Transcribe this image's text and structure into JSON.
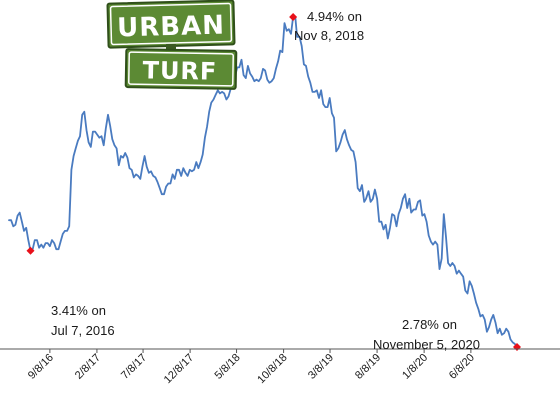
{
  "logo": {
    "line1": "URBAN",
    "line2": "TURF",
    "sign_color": "#5c8a34",
    "sign_border": "#2f4f1a"
  },
  "colors": {
    "line": "#4a7bc0",
    "marker": "#e8101a",
    "axis": "#555555"
  },
  "annotations": {
    "high_line1": "4.94% on",
    "high_line2": "Nov 8, 2018",
    "low2016_line1": "3.41% on",
    "low2016_line2": "Jul 7, 2016",
    "low2020_line1": "2.78% on",
    "low2020_line2": "November 5, 2020"
  },
  "chart_data": {
    "type": "line",
    "title": "",
    "xlabel": "",
    "ylabel": "",
    "x_ticks": [
      "9/8/16",
      "2/8/17",
      "7/8/17",
      "12/8/17",
      "5/8/18",
      "10/8/18",
      "3/8/19",
      "8/8/19",
      "1/8/20",
      "6/8/20"
    ],
    "ylim": [
      2.7,
      5.0
    ],
    "grid": false,
    "legend": "none",
    "series": [
      {
        "x": [
          "2016-04-28",
          "2016-05-05",
          "2016-05-12",
          "2016-05-19",
          "2016-05-26",
          "2016-06-02",
          "2016-06-09",
          "2016-06-16",
          "2016-06-23",
          "2016-06-30",
          "2016-07-07",
          "2016-07-14",
          "2016-07-21",
          "2016-07-28",
          "2016-08-04",
          "2016-08-11",
          "2016-08-18",
          "2016-08-25",
          "2016-09-01",
          "2016-09-08",
          "2016-09-15",
          "2016-09-22",
          "2016-09-29",
          "2016-10-06",
          "2016-10-13",
          "2016-10-20",
          "2016-10-27",
          "2016-11-03",
          "2016-11-10",
          "2016-11-17",
          "2016-11-24",
          "2016-12-01",
          "2016-12-08",
          "2016-12-15",
          "2016-12-22",
          "2016-12-29",
          "2017-01-05",
          "2017-01-12",
          "2017-01-19",
          "2017-01-26",
          "2017-02-02",
          "2017-02-09",
          "2017-02-16",
          "2017-02-23",
          "2017-03-02",
          "2017-03-09",
          "2017-03-16",
          "2017-03-23",
          "2017-03-30",
          "2017-04-06",
          "2017-04-13",
          "2017-04-20",
          "2017-04-27",
          "2017-05-04",
          "2017-05-11",
          "2017-05-18",
          "2017-05-25",
          "2017-06-01",
          "2017-06-08",
          "2017-06-15",
          "2017-06-22",
          "2017-06-29",
          "2017-07-06",
          "2017-07-13",
          "2017-07-20",
          "2017-07-27",
          "2017-08-03",
          "2017-08-10",
          "2017-08-17",
          "2017-08-24",
          "2017-08-31",
          "2017-09-07",
          "2017-09-14",
          "2017-09-21",
          "2017-09-28",
          "2017-10-05",
          "2017-10-12",
          "2017-10-19",
          "2017-10-26",
          "2017-11-02",
          "2017-11-09",
          "2017-11-16",
          "2017-11-23",
          "2017-11-30",
          "2017-12-07",
          "2017-12-14",
          "2017-12-21",
          "2017-12-28",
          "2018-01-04",
          "2018-01-11",
          "2018-01-18",
          "2018-01-25",
          "2018-02-01",
          "2018-02-08",
          "2018-02-15",
          "2018-02-22",
          "2018-03-01",
          "2018-03-08",
          "2018-03-15",
          "2018-03-22",
          "2018-03-29",
          "2018-04-05",
          "2018-04-12",
          "2018-04-19",
          "2018-04-26",
          "2018-05-03",
          "2018-05-10",
          "2018-05-17",
          "2018-05-24",
          "2018-05-31",
          "2018-06-07",
          "2018-06-14",
          "2018-06-21",
          "2018-06-28",
          "2018-07-05",
          "2018-07-12",
          "2018-07-19",
          "2018-07-26",
          "2018-08-02",
          "2018-08-09",
          "2018-08-16",
          "2018-08-23",
          "2018-08-30",
          "2018-09-06",
          "2018-09-13",
          "2018-09-20",
          "2018-09-27",
          "2018-10-04",
          "2018-10-11",
          "2018-10-18",
          "2018-10-25",
          "2018-11-01",
          "2018-11-08",
          "2018-11-15",
          "2018-11-21",
          "2018-11-29",
          "2018-12-06",
          "2018-12-13",
          "2018-12-20",
          "2018-12-27",
          "2019-01-03",
          "2019-01-10",
          "2019-01-17",
          "2019-01-24",
          "2019-01-31",
          "2019-02-07",
          "2019-02-14",
          "2019-02-21",
          "2019-02-28",
          "2019-03-07",
          "2019-03-14",
          "2019-03-21",
          "2019-03-28",
          "2019-04-04",
          "2019-04-11",
          "2019-04-18",
          "2019-04-25",
          "2019-05-02",
          "2019-05-09",
          "2019-05-16",
          "2019-05-23",
          "2019-05-30",
          "2019-06-06",
          "2019-06-13",
          "2019-06-20",
          "2019-06-27",
          "2019-07-03",
          "2019-07-11",
          "2019-07-18",
          "2019-07-25",
          "2019-08-01",
          "2019-08-08",
          "2019-08-15",
          "2019-08-22",
          "2019-08-29",
          "2019-09-05",
          "2019-09-12",
          "2019-09-19",
          "2019-09-26",
          "2019-10-03",
          "2019-10-10",
          "2019-10-17",
          "2019-10-24",
          "2019-10-31",
          "2019-11-07",
          "2019-11-14",
          "2019-11-21",
          "2019-11-27",
          "2019-12-05",
          "2019-12-12",
          "2019-12-19",
          "2019-12-26",
          "2020-01-02",
          "2020-01-09",
          "2020-01-16",
          "2020-01-23",
          "2020-01-30",
          "2020-02-06",
          "2020-02-13",
          "2020-02-20",
          "2020-02-27",
          "2020-03-05",
          "2020-03-12",
          "2020-03-19",
          "2020-03-26",
          "2020-04-02",
          "2020-04-09",
          "2020-04-16",
          "2020-04-23",
          "2020-04-30",
          "2020-05-07",
          "2020-05-14",
          "2020-05-21",
          "2020-05-28",
          "2020-06-04",
          "2020-06-11",
          "2020-06-18",
          "2020-06-25",
          "2020-07-02",
          "2020-07-09",
          "2020-07-16",
          "2020-07-23",
          "2020-07-30",
          "2020-08-06",
          "2020-08-13",
          "2020-08-20",
          "2020-08-27",
          "2020-09-03",
          "2020-09-10",
          "2020-09-17",
          "2020-09-24",
          "2020-10-01",
          "2020-10-08",
          "2020-10-15",
          "2020-10-22",
          "2020-10-29",
          "2020-11-05"
        ],
        "values": [
          3.61,
          3.61,
          3.57,
          3.58,
          3.64,
          3.66,
          3.6,
          3.54,
          3.56,
          3.48,
          3.41,
          3.42,
          3.48,
          3.48,
          3.43,
          3.45,
          3.43,
          3.46,
          3.46,
          3.44,
          3.48,
          3.46,
          3.42,
          3.42,
          3.47,
          3.52,
          3.54,
          3.54,
          3.57,
          3.94,
          4.03,
          4.08,
          4.13,
          4.16,
          4.3,
          4.32,
          4.2,
          4.12,
          4.09,
          4.19,
          4.19,
          4.17,
          4.15,
          4.16,
          4.1,
          4.21,
          4.3,
          4.23,
          4.14,
          4.1,
          4.08,
          3.97,
          4.03,
          4.02,
          4.05,
          4.02,
          3.95,
          3.94,
          3.89,
          3.91,
          3.9,
          3.88,
          3.96,
          4.03,
          3.96,
          3.92,
          3.93,
          3.9,
          3.89,
          3.86,
          3.82,
          3.78,
          3.78,
          3.83,
          3.85,
          3.85,
          3.91,
          3.88,
          3.94,
          3.94,
          3.9,
          3.95,
          3.92,
          3.9,
          3.94,
          3.93,
          3.94,
          3.99,
          3.95,
          3.99,
          4.04,
          4.15,
          4.22,
          4.32,
          4.38,
          4.4,
          4.43,
          4.46,
          4.44,
          4.45,
          4.44,
          4.4,
          4.42,
          4.47,
          4.58,
          4.55,
          4.61,
          4.61,
          4.66,
          4.56,
          4.54,
          4.62,
          4.57,
          4.55,
          4.52,
          4.53,
          4.52,
          4.54,
          4.6,
          4.59,
          4.53,
          4.51,
          4.52,
          4.54,
          4.6,
          4.65,
          4.72,
          4.71,
          4.9,
          4.85,
          4.86,
          4.83,
          4.94,
          4.94,
          4.81,
          4.81,
          4.75,
          4.63,
          4.62,
          4.55,
          4.51,
          4.45,
          4.45,
          4.46,
          4.41,
          4.46,
          4.37,
          4.35,
          4.35,
          4.41,
          4.31,
          4.28,
          4.06,
          4.08,
          4.12,
          4.17,
          4.2,
          4.14,
          4.1,
          4.07,
          4.06,
          3.99,
          3.82,
          3.8,
          3.84,
          3.73,
          3.75,
          3.8,
          3.73,
          3.75,
          3.81,
          3.75,
          3.6,
          3.6,
          3.55,
          3.58,
          3.49,
          3.56,
          3.65,
          3.64,
          3.57,
          3.65,
          3.69,
          3.75,
          3.78,
          3.69,
          3.75,
          3.66,
          3.68,
          3.68,
          3.73,
          3.74,
          3.64,
          3.65,
          3.6,
          3.51,
          3.47,
          3.45,
          3.47,
          3.45,
          3.29,
          3.36,
          3.65,
          3.5,
          3.33,
          3.31,
          3.33,
          3.31,
          3.26,
          3.28,
          3.26,
          3.24,
          3.15,
          3.13,
          3.21,
          3.18,
          3.13,
          3.07,
          3.03,
          2.98,
          2.99,
          2.96,
          2.88,
          2.91,
          2.96,
          2.99,
          2.94,
          2.87,
          2.9,
          2.86,
          2.87,
          2.9,
          2.88,
          2.83,
          2.81,
          2.8,
          2.78
        ]
      }
    ],
    "markers": [
      {
        "x": "2016-07-07",
        "value": 3.41
      },
      {
        "x": "2018-11-08",
        "value": 4.94
      },
      {
        "x": "2020-11-05",
        "value": 2.78
      }
    ]
  }
}
